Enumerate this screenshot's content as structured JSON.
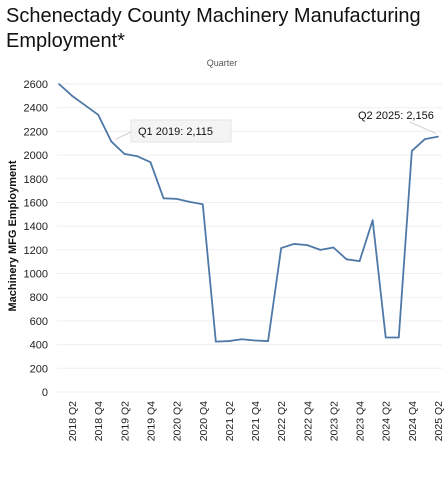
{
  "chart_data": {
    "type": "line",
    "title": "Schenectady County Machinery Manufacturing Employment*",
    "top_axis_label": "Quarter",
    "xlabel": "",
    "ylabel": "Machinery MFG Employment",
    "ylim": [
      0,
      2600
    ],
    "yticks": [
      0,
      200,
      400,
      600,
      800,
      1000,
      1200,
      1400,
      1600,
      1800,
      2000,
      2200,
      2400,
      2600
    ],
    "x_tick_labels": [
      "2018 Q2",
      "2018 Q4",
      "2019 Q2",
      "2019 Q4",
      "2020 Q2",
      "2020 Q4",
      "2021 Q2",
      "2021 Q4",
      "2022 Q2",
      "2022 Q4",
      "2023 Q2",
      "2023 Q4",
      "2024 Q2",
      "2024 Q4",
      "2025 Q2"
    ],
    "x": [
      "2018 Q1",
      "2018 Q2",
      "2018 Q3",
      "2018 Q4",
      "2019 Q1",
      "2019 Q2",
      "2019 Q3",
      "2019 Q4",
      "2020 Q1",
      "2020 Q2",
      "2020 Q3",
      "2020 Q4",
      "2021 Q1",
      "2021 Q2",
      "2021 Q3",
      "2021 Q4",
      "2022 Q1",
      "2022 Q2",
      "2022 Q3",
      "2022 Q4",
      "2023 Q1",
      "2023 Q2",
      "2023 Q3",
      "2023 Q4",
      "2024 Q1",
      "2024 Q2",
      "2024 Q3",
      "2024 Q4",
      "2025 Q1",
      "2025 Q2"
    ],
    "series": [
      {
        "values": [
          2600,
          2500,
          2420,
          2340,
          2115,
          2010,
          1990,
          1940,
          1635,
          1630,
          1605,
          1585,
          425,
          430,
          445,
          435,
          430,
          1215,
          1250,
          1240,
          1200,
          1220,
          1120,
          1105,
          1450,
          460,
          460,
          2035,
          2135,
          2156
        ],
        "color": "#4e79a7"
      }
    ],
    "annotations": [
      {
        "text": "Q1 2019: 2,115",
        "x": "2019 Q1",
        "y": 2115
      },
      {
        "text": "Q2 2025: 2,156",
        "x": "2025 Q2",
        "y": 2156
      }
    ],
    "grid": true,
    "legend": "none"
  }
}
